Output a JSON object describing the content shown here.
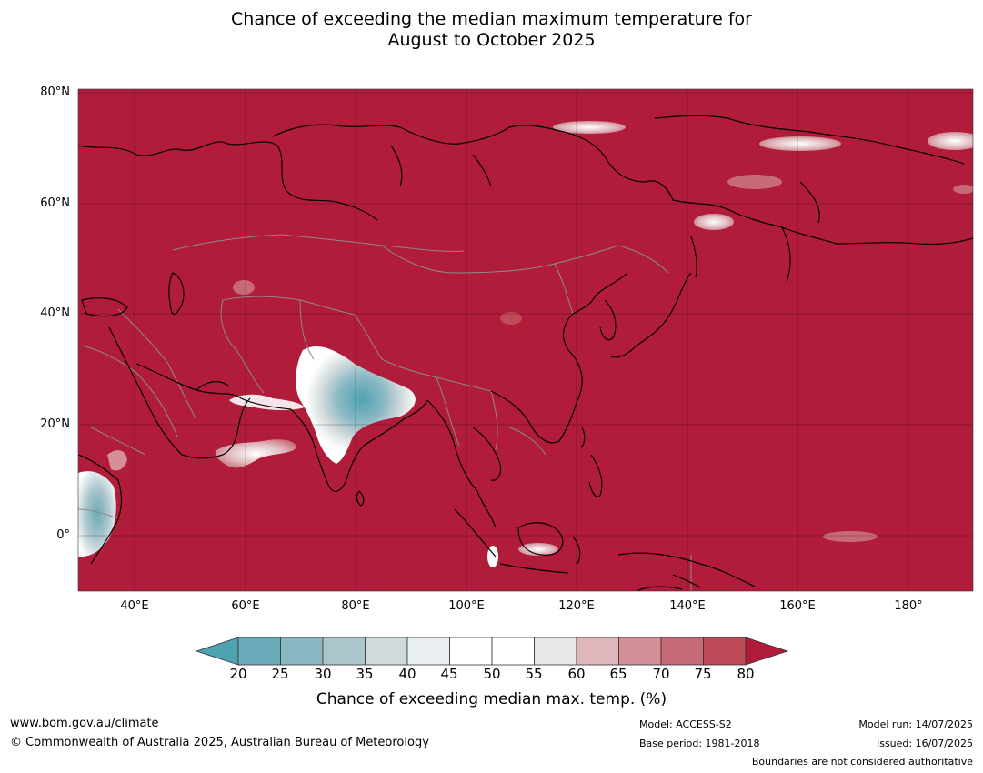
{
  "title": {
    "line1": "Chance of exceeding the median maximum temperature for",
    "line2": "August to October 2025"
  },
  "map": {
    "lat_ticks": [
      "80°N",
      "60°N",
      "40°N",
      "20°N",
      "0°"
    ],
    "lon_ticks": [
      "40°E",
      "60°E",
      "80°E",
      "100°E",
      "120°E",
      "140°E",
      "160°E",
      "180°"
    ],
    "background_color": "#b11c3a",
    "coastline_color": "#000000",
    "border_color": "#8a8a8a"
  },
  "colorbar": {
    "ticks": [
      "20",
      "25",
      "30",
      "35",
      "40",
      "45",
      "50",
      "55",
      "60",
      "65",
      "70",
      "75",
      "80"
    ],
    "colors": [
      "#4fa3b1",
      "#6aabb9",
      "#89b8c4",
      "#abc6cb",
      "#d0d9db",
      "#e9eef0",
      "#ffffff",
      "#ffffff",
      "#e7e7e7",
      "#deb6bb",
      "#d48f97",
      "#c86a76",
      "#c04a58",
      "#b11c3a"
    ],
    "label": "Chance of exceeding median max. temp. (%)"
  },
  "footer": {
    "website": "www.bom.gov.au/climate",
    "copyright": "© Commonwealth of Australia 2025, Australian Bureau of Meteorology",
    "model": "Model: ACCESS-S2",
    "base_period": "Base period: 1981-2018",
    "model_run": "Model run: 14/07/2025",
    "issued": "Issued: 16/07/2025",
    "boundaries_note": "Boundaries are not considered authoritative"
  }
}
